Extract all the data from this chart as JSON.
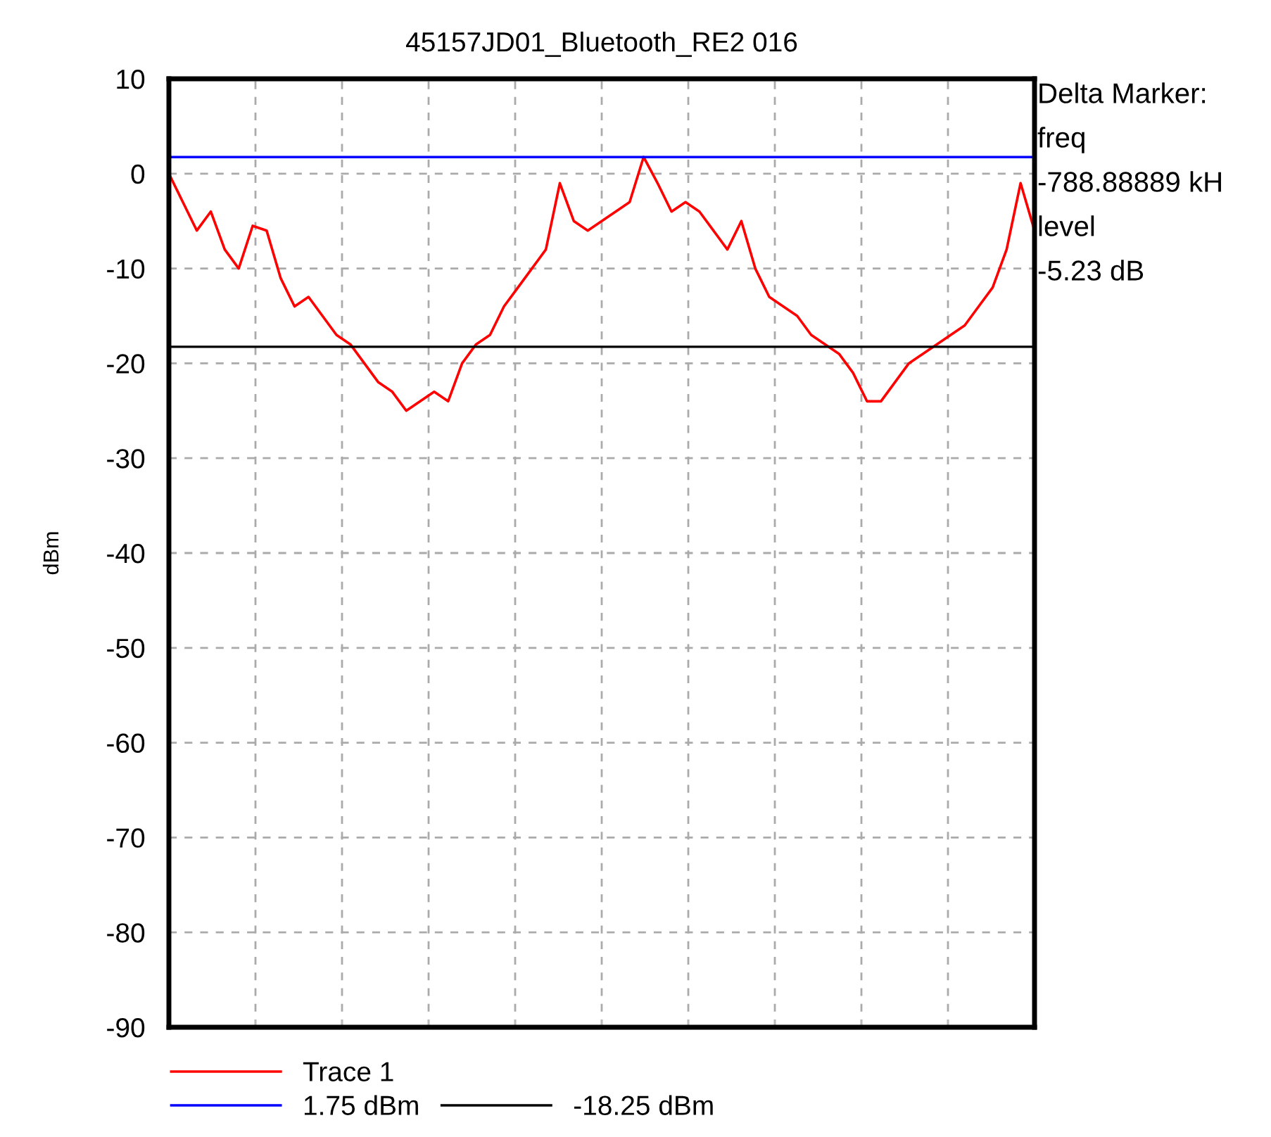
{
  "chart_data": {
    "type": "line",
    "title": "45157JD01_Bluetooth_RE2 016",
    "ylabel": "dBm",
    "categories": [
      null,
      null,
      null,
      null,
      null,
      null,
      null,
      null,
      null,
      null,
      null,
      null,
      null,
      null,
      null,
      null,
      null,
      null,
      null,
      null,
      null,
      null,
      null,
      null,
      null,
      null,
      null,
      null,
      null,
      null,
      null,
      null,
      null,
      null,
      null,
      null,
      null,
      null,
      null,
      null,
      null,
      null,
      null,
      null,
      null,
      null,
      null,
      null,
      null,
      null,
      null,
      null,
      null,
      null,
      null,
      null,
      null,
      null,
      null,
      null,
      null,
      null,
      null
    ],
    "series": [
      {
        "name": "Trace 1",
        "color": "#ff0000",
        "values": [
          0,
          -3,
          -6,
          -4,
          -8,
          -10,
          -5.5,
          -6,
          -11,
          -14,
          -13,
          -15,
          -17,
          -18,
          -20,
          -22,
          -23,
          -25,
          -24,
          -23,
          -24,
          -20,
          -18,
          -17,
          -14,
          -12,
          -10,
          -8,
          -1,
          -5,
          -6,
          -5,
          -4,
          -3,
          1.75,
          -1,
          -4,
          -3,
          -4,
          -6,
          -8,
          -5,
          -10,
          -13,
          -14,
          -15,
          -17,
          -18,
          -19,
          -21,
          -24,
          -24,
          -22,
          -20,
          -19,
          -18,
          -17,
          -16,
          -14,
          -12,
          -8,
          -1,
          -6
        ]
      }
    ],
    "ylim": [
      -90,
      10
    ],
    "yticks": [
      10,
      0,
      -10,
      -20,
      -30,
      -40,
      -50,
      -60,
      -70,
      -80,
      -90
    ],
    "ref_lines": [
      {
        "axis": "y",
        "value": 1.75,
        "label": "1.75 dBm",
        "color": "#0000ff"
      },
      {
        "axis": "y",
        "value": -18.25,
        "label": "-18.25 dBm",
        "color": "#000000"
      }
    ],
    "annotations": [
      "Delta Marker:",
      "freq",
      "-788.88889 kH",
      "level",
      "-5.23 dB"
    ],
    "grid": true,
    "legend": "bottom",
    "tick_labels": "y",
    "line_style": "solid",
    "marker": "none"
  }
}
